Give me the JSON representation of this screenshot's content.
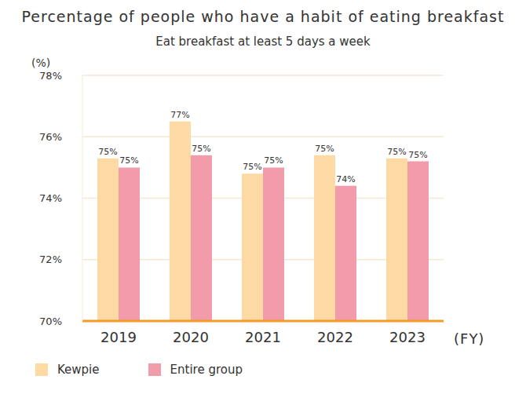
{
  "chart_data": {
    "type": "bar",
    "title": "Percentage of people who have a habit of eating breakfast",
    "subtitle": "Eat breakfast at least 5 days a week",
    "y_label": "(%)",
    "x_label": "(FY)",
    "categories": [
      "2019",
      "2020",
      "2021",
      "2022",
      "2023"
    ],
    "series": [
      {
        "name": "Kewpie",
        "color": "#fdd9a3",
        "values": [
          75.3,
          76.5,
          74.8,
          75.4,
          75.3
        ],
        "value_labels": [
          "75%",
          "77%",
          "75%",
          "75%",
          "75%"
        ]
      },
      {
        "name": "Entire group",
        "color": "#f29bab",
        "values": [
          75.0,
          75.4,
          75.0,
          74.4,
          75.2
        ],
        "value_labels": [
          "75%",
          "75%",
          "75%",
          "74%",
          "75%"
        ]
      }
    ],
    "ylim": [
      70,
      78
    ],
    "yticks": [
      {
        "value": 70,
        "label": "70%"
      },
      {
        "value": 72,
        "label": "72%"
      },
      {
        "value": 74,
        "label": "74%"
      },
      {
        "value": 76,
        "label": "76%"
      },
      {
        "value": 78,
        "label": "78%"
      }
    ],
    "grid": true,
    "legend": "bottom left",
    "data_labels": true
  }
}
